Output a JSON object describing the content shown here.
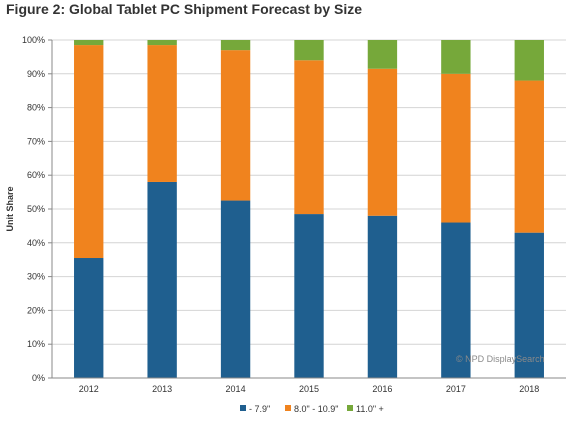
{
  "figure_title": "Figure 2: Global Tablet PC Shipment Forecast by Size",
  "watermark": "© NPD DisplaySearch",
  "chart_data": {
    "type": "bar",
    "stacked": true,
    "categories": [
      "2012",
      "2013",
      "2014",
      "2015",
      "2016",
      "2017",
      "2018"
    ],
    "series": [
      {
        "name": "- 7.9\"",
        "color": "#1f5f8f",
        "values": [
          35.5,
          58,
          52.5,
          48.5,
          48,
          46,
          43
        ]
      },
      {
        "name": "8.0\" - 10.9\"",
        "color": "#f0831e",
        "values": [
          63,
          40.5,
          44.5,
          45.5,
          43.5,
          44,
          45
        ]
      },
      {
        "name": "11.0\" +",
        "color": "#76a83a",
        "values": [
          1.5,
          1.5,
          3,
          6,
          8.5,
          10,
          12
        ]
      }
    ],
    "xlabel": "",
    "ylabel": "Unit Share",
    "ylim": [
      0,
      100
    ],
    "yticks": [
      "0%",
      "10%",
      "20%",
      "30%",
      "40%",
      "50%",
      "60%",
      "70%",
      "80%",
      "90%",
      "100%"
    ],
    "grid": true,
    "legend_position": "bottom"
  }
}
